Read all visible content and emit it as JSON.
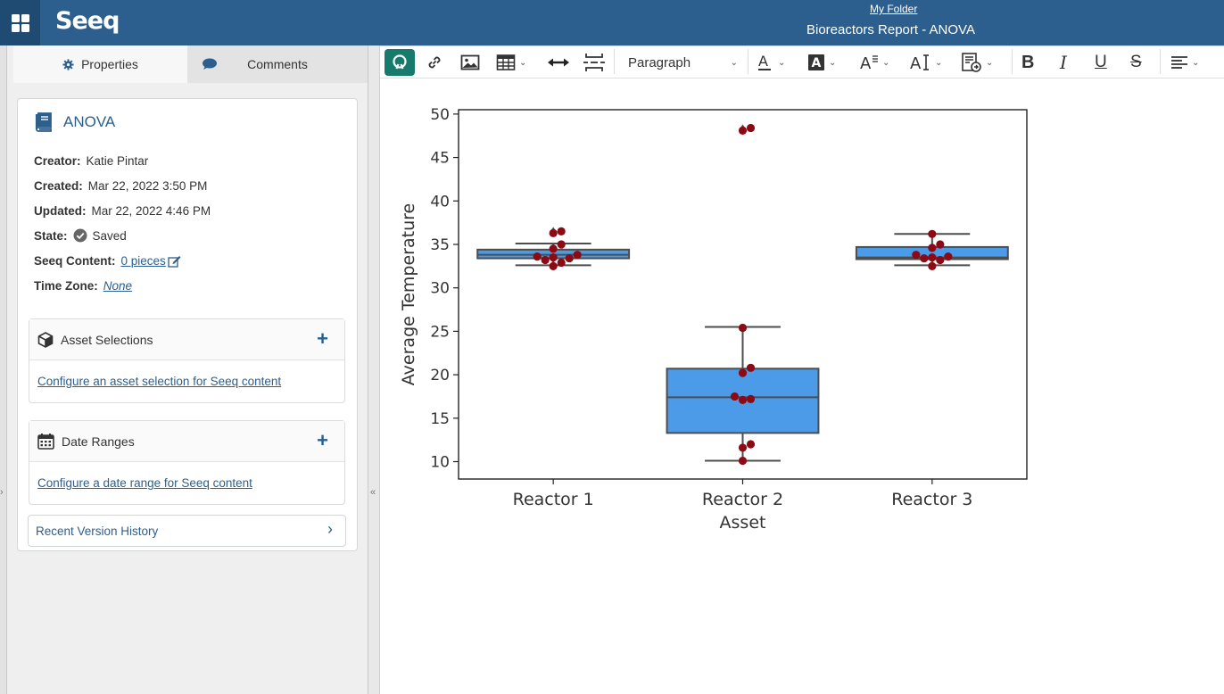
{
  "header": {
    "logo": "Seeq",
    "folder_link": "My Folder",
    "report_title": "Bioreactors Report - ANOVA"
  },
  "tabs": [
    {
      "label": "Properties",
      "icon": "gear-icon"
    },
    {
      "label": "Comments",
      "icon": "comment-icon"
    }
  ],
  "document": {
    "name": "ANOVA",
    "creator_label": "Creator:",
    "creator": "Katie Pintar",
    "created_label": "Created:",
    "created": "Mar 22, 2022 3:50 PM",
    "updated_label": "Updated:",
    "updated": "Mar 22, 2022 4:46 PM",
    "state_label": "State:",
    "state": "Saved",
    "content_label": "Seeq Content:",
    "content_link": "0 pieces",
    "timezone_label": "Time Zone:",
    "timezone": "None"
  },
  "sections": {
    "assets": {
      "title": "Asset Selections",
      "link": "Configure an asset selection for Seeq content"
    },
    "dates": {
      "title": "Date Ranges",
      "link": "Configure a date range for Seeq content"
    },
    "history": {
      "title": "Recent Version History"
    }
  },
  "toolbar": {
    "paragraph_select": "Paragraph",
    "bold": "B",
    "italic": "I",
    "underline": "U",
    "strike": "S"
  },
  "colors": {
    "header": "#2c5f8e",
    "accent_green": "#167a6c",
    "box_fill": "#4c9be8",
    "point": "#8b0a14"
  },
  "chart_data": {
    "type": "box",
    "xlabel": "Asset",
    "ylabel": "Average Temperature",
    "categories": [
      "Reactor 1",
      "Reactor 2",
      "Reactor 3"
    ],
    "ylim": [
      8,
      50.5
    ],
    "yticks": [
      10,
      15,
      20,
      25,
      30,
      35,
      40,
      45,
      50
    ],
    "grid": false,
    "boxes": [
      {
        "whisker_low": 32.6,
        "q1": 33.4,
        "median": 33.8,
        "q3": 34.4,
        "whisker_high": 35.1,
        "outliers": [
          36.4
        ]
      },
      {
        "whisker_low": 10.1,
        "q1": 13.3,
        "median": 17.4,
        "q3": 20.7,
        "whisker_high": 25.5,
        "outliers": [
          48.2
        ]
      },
      {
        "whisker_low": 32.6,
        "q1": 33.3,
        "median": 33.5,
        "q3": 34.7,
        "whisker_high": 36.2,
        "outliers": []
      }
    ],
    "points": [
      [
        32.5,
        32.9,
        33.2,
        33.4,
        33.5,
        33.6,
        33.8,
        34.5,
        35.0,
        36.3,
        36.5
      ],
      [
        10.1,
        11.6,
        12.0,
        17.1,
        17.2,
        17.5,
        20.2,
        20.8,
        25.4,
        48.1,
        48.4
      ],
      [
        32.5,
        33.2,
        33.4,
        33.5,
        33.6,
        33.8,
        34.6,
        35.0,
        36.2
      ]
    ]
  }
}
